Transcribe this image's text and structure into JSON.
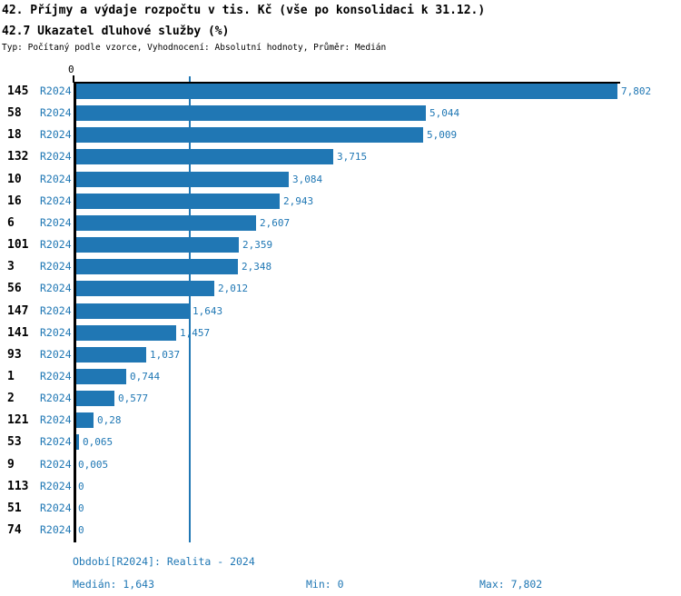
{
  "header": {
    "title_line1": "42. Příjmy a výdaje rozpočtu v tis. Kč (vše po konsolidaci k 31.12.)",
    "title_line2": "42.7 Ukazatel dluhové služby (%)",
    "meta": "Typ: Počítaný podle vzorce, Vyhodnocení: Absolutní hodnoty, Průměr: Medián"
  },
  "colors": {
    "bar": "#2077b4",
    "blue_text": "#1f77b4",
    "axis": "#000000",
    "median_line": "#2077b4",
    "background": "#ffffff"
  },
  "chart_data": {
    "type": "bar",
    "orientation": "horizontal",
    "title": "42.7 Ukazatel dluhové služby (%)",
    "xlabel": "",
    "ylabel": "",
    "xlim": [
      0,
      7.802
    ],
    "x_tick_label": "0",
    "grid": false,
    "legend_position": "none",
    "median_value": 1.643,
    "series_name": "R2024",
    "categories": [
      "145",
      "58",
      "18",
      "132",
      "10",
      "16",
      "6",
      "101",
      "3",
      "56",
      "147",
      "141",
      "93",
      "1",
      "2",
      "121",
      "53",
      "9",
      "113",
      "51",
      "74"
    ],
    "values": [
      7.802,
      5.044,
      5.009,
      3.715,
      3.084,
      2.943,
      2.607,
      2.359,
      2.348,
      2.012,
      1.643,
      1.457,
      1.037,
      0.744,
      0.577,
      0.28,
      0.065,
      0.005,
      0,
      0,
      0
    ],
    "value_labels": [
      "7,802",
      "5,044",
      "5,009",
      "3,715",
      "3,084",
      "2,943",
      "2,607",
      "2,359",
      "2,348",
      "2,012",
      "1,643",
      "1,457",
      "1,037",
      "0,744",
      "0,577",
      "0,28",
      "0,065",
      "0,005",
      "0",
      "0",
      "0"
    ]
  },
  "footer": {
    "period_line": "Období[R2024]: Realita - 2024",
    "median_label": "Medián: 1,643",
    "min_label": "Min: 0",
    "max_label": "Max: 7,802"
  }
}
